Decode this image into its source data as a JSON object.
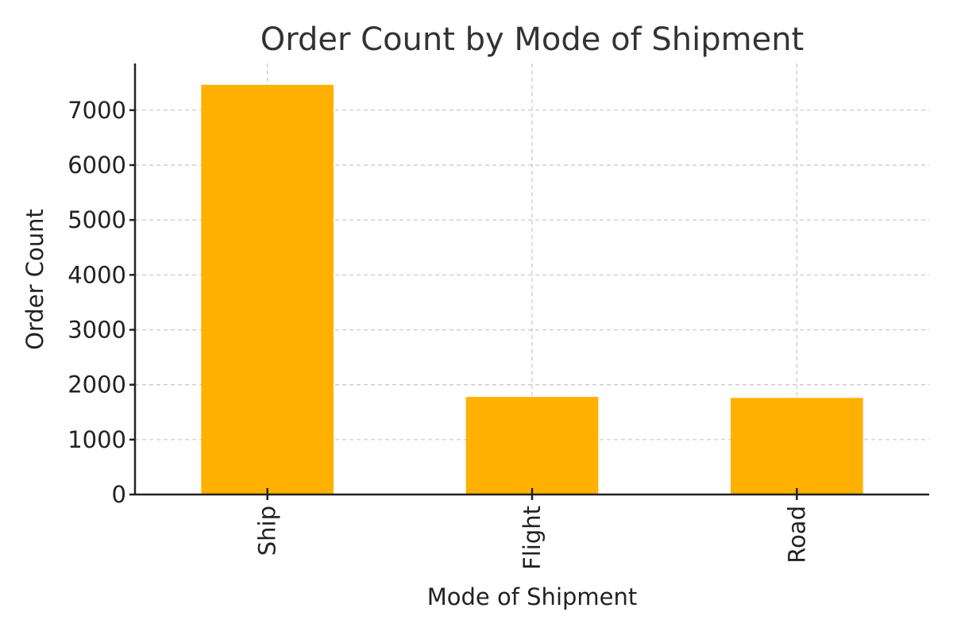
{
  "chart_data": {
    "type": "bar",
    "title": "Order Count by Mode of Shipment",
    "xlabel": "Mode of Shipment",
    "ylabel": "Order Count",
    "categories": [
      "Ship",
      "Flight",
      "Road"
    ],
    "values": [
      7462,
      1777,
      1760
    ],
    "ylim": [
      0,
      7850
    ],
    "yticks": [
      0,
      1000,
      2000,
      3000,
      4000,
      5000,
      6000,
      7000
    ],
    "bar_color": "#FFB000",
    "grid": true,
    "legend": "none"
  }
}
